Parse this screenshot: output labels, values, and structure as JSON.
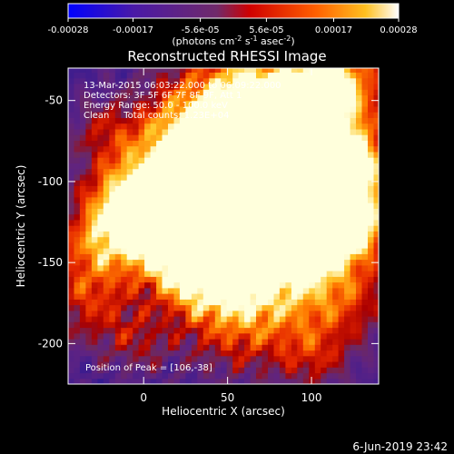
{
  "chart_data": {
    "type": "heatmap",
    "title": "Reconstructed RHESSI Image",
    "xlabel": "Heliocentric X (arcsec)",
    "ylabel": "Heliocentric Y (arcsec)",
    "xlim": [
      -45,
      140
    ],
    "ylim": [
      -225,
      -30
    ],
    "xticks": [
      0,
      50,
      100
    ],
    "yticks": [
      -50,
      -100,
      -150,
      -200
    ],
    "colorbar": {
      "ticks": [
        "-0.00028",
        "-0.00017",
        "-5.6e-05",
        "5.6e-05",
        "0.00017",
        "0.00028"
      ],
      "units_prefix": "(photons cm",
      "units_exp1": "-2",
      "units_mid": " s",
      "units_exp2": "-1",
      "units_mid2": " asec",
      "units_exp3": "-2",
      "units_suffix": ")",
      "range": [
        -0.00028,
        0.00028
      ],
      "colors": [
        "#0000ff",
        "#5a1e96",
        "#8c2a55",
        "#ff0000",
        "#ff9600",
        "#ffffcc"
      ]
    },
    "annotations": [
      "13-Mar-2015 06:03:22.000 to 06:09:22.000",
      "Detectors: 3F 5F 6F 7F 8F 9F, Att 1",
      "Energy Range: 50.0 - 100.0 keV",
      "Clean     Total counts: 1.23E+04"
    ],
    "peak_label": "Position of Peak = [106,-38]",
    "peak": [
      106,
      -38
    ],
    "timestamp": "6-Jun-2019 23:42"
  }
}
